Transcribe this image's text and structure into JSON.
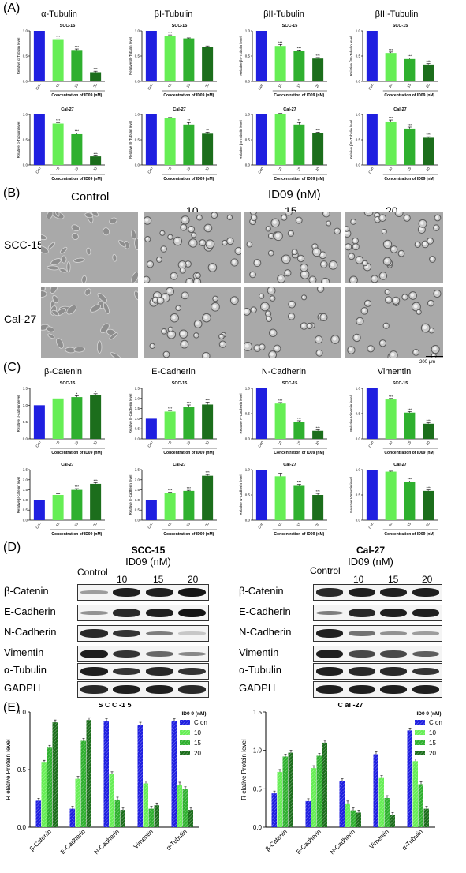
{
  "panel_labels": {
    "a": "(A)",
    "b": "(B)",
    "c": "(C)",
    "d": "(D)",
    "e": "(E)"
  },
  "colors": {
    "con": "#1f1fe0",
    "d10": "#66ee55",
    "d15": "#2fb02f",
    "d20": "#1c6e1c"
  },
  "a_titles": [
    "α-Tubulin",
    "βI-Tubulin",
    "βII-Tubulin",
    "βIII-Tubulin"
  ],
  "c_titles": [
    "β-Catenin",
    "E-Cadherin",
    "N-Cadherin",
    "Vimentin"
  ],
  "small_common": {
    "categories": [
      "Con",
      "10",
      "15",
      "20"
    ],
    "xlabel": "Concentration of ID09 (nM)"
  },
  "small_charts": [
    {
      "row": "a",
      "line": "SCC-15",
      "ylabel": "Relative α-Tubulin level",
      "ymax": 1.0,
      "values": [
        1.0,
        0.82,
        0.62,
        0.18
      ],
      "err": [
        0,
        0.02,
        0.02,
        0.02
      ],
      "sig": [
        "",
        "***",
        "***",
        "***"
      ]
    },
    {
      "row": "a",
      "line": "SCC-15",
      "ylabel": "Relative βI-Tubulin level",
      "ymax": 1.0,
      "values": [
        1.0,
        0.9,
        0.85,
        0.68
      ],
      "err": [
        0,
        0.02,
        0.01,
        0.02
      ],
      "sig": [
        "",
        "***",
        "",
        ""
      ]
    },
    {
      "row": "a",
      "line": "SCC-15",
      "ylabel": "Relative βII-Tubulin level",
      "ymax": 1.0,
      "values": [
        1.0,
        0.7,
        0.6,
        0.45
      ],
      "err": [
        0,
        0.03,
        0.02,
        0.02
      ],
      "sig": [
        "",
        "***",
        "***",
        "***"
      ]
    },
    {
      "row": "a",
      "line": "SCC-15",
      "ylabel": "Relative βIII-Tubulin level",
      "ymax": 1.0,
      "values": [
        1.0,
        0.56,
        0.44,
        0.33
      ],
      "err": [
        0,
        0.02,
        0.02,
        0.02
      ],
      "sig": [
        "",
        "***",
        "***",
        "***"
      ]
    },
    {
      "row": "a2",
      "line": "Cal-27",
      "ylabel": "Relative α-Tubulin level",
      "ymax": 1.0,
      "values": [
        1.0,
        0.82,
        0.61,
        0.17
      ],
      "err": [
        0,
        0.02,
        0.02,
        0.01
      ],
      "sig": [
        "",
        "***",
        "***",
        "***"
      ]
    },
    {
      "row": "a2",
      "line": "Cal-27",
      "ylabel": "Relative βI-Tubulin level",
      "ymax": 1.0,
      "values": [
        1.0,
        0.93,
        0.8,
        0.62
      ],
      "err": [
        0,
        0.01,
        0.04,
        0.03
      ],
      "sig": [
        "",
        "",
        "**",
        "**"
      ]
    },
    {
      "row": "a2",
      "line": "Cal-27",
      "ylabel": "Relative βII-Tubulin level",
      "ymax": 1.0,
      "values": [
        1.0,
        1.0,
        0.8,
        0.63
      ],
      "err": [
        0,
        0.02,
        0.04,
        0.02
      ],
      "sig": [
        "",
        "",
        "**",
        "***"
      ]
    },
    {
      "row": "a2",
      "line": "Cal-27",
      "ylabel": "Relative βIII-Tubulin level",
      "ymax": 1.0,
      "values": [
        1.0,
        0.86,
        0.72,
        0.54
      ],
      "err": [
        0,
        0.03,
        0.03,
        0.02
      ],
      "sig": [
        "",
        "***",
        "***",
        "***"
      ]
    },
    {
      "row": "c",
      "line": "SCC-15",
      "ylabel": "Relative β-catenin level",
      "ymax": 1.5,
      "ticks": [
        0,
        0.5,
        1.0,
        1.5
      ],
      "values": [
        1.0,
        1.2,
        1.24,
        1.3
      ],
      "err": [
        0,
        0.1,
        0.04,
        0.04
      ],
      "sig": [
        "",
        "",
        "*",
        "*"
      ]
    },
    {
      "row": "c",
      "line": "SCC-15",
      "ylabel": "Relative E-Cadherin level",
      "ymax": 2.5,
      "ticks": [
        0,
        0.5,
        1.0,
        1.5,
        2.0,
        2.5
      ],
      "values": [
        1.0,
        1.35,
        1.6,
        1.7
      ],
      "err": [
        0,
        0.05,
        0.08,
        0.12
      ],
      "sig": [
        "",
        "***",
        "***",
        "***"
      ]
    },
    {
      "row": "c",
      "line": "SCC-15",
      "ylabel": "Relative N-Cadherin level",
      "ymax": 1.0,
      "values": [
        1.0,
        0.7,
        0.34,
        0.16
      ],
      "err": [
        0,
        0.02,
        0.02,
        0.02
      ],
      "sig": [
        "",
        "***",
        "***",
        "***"
      ]
    },
    {
      "row": "c",
      "line": "SCC-15",
      "ylabel": "Relative Vimentin level",
      "ymax": 1.0,
      "values": [
        1.0,
        0.78,
        0.52,
        0.3
      ],
      "err": [
        0,
        0.02,
        0.02,
        0.02
      ],
      "sig": [
        "",
        "***",
        "***",
        "***"
      ]
    },
    {
      "row": "c2",
      "line": "Cal-27",
      "ylabel": "Relative β-catenin level",
      "ymax": 2.5,
      "ticks": [
        0,
        0.5,
        1.0,
        1.5,
        2.0,
        2.5
      ],
      "values": [
        1.0,
        1.25,
        1.5,
        1.8
      ],
      "err": [
        0,
        0.06,
        0.06,
        0.06
      ],
      "sig": [
        "",
        "",
        "***",
        "***"
      ]
    },
    {
      "row": "c2",
      "line": "Cal-27",
      "ylabel": "Relative E-Cadherin level",
      "ymax": 2.5,
      "ticks": [
        0,
        0.5,
        1.0,
        1.5,
        2.0,
        2.5
      ],
      "values": [
        1.0,
        1.35,
        1.45,
        2.2
      ],
      "err": [
        0,
        0.04,
        0.03,
        0.06
      ],
      "sig": [
        "",
        "***",
        "***",
        "***"
      ]
    },
    {
      "row": "c2",
      "line": "Cal-27",
      "ylabel": "Relative N-Cadherin level",
      "ymax": 1.0,
      "values": [
        1.0,
        0.87,
        0.68,
        0.5
      ],
      "err": [
        0,
        0.06,
        0.03,
        0.03
      ],
      "sig": [
        "",
        "",
        "***",
        "***"
      ]
    },
    {
      "row": "c2",
      "line": "Cal-27",
      "ylabel": "Relative Vimentin level",
      "ymax": 1.0,
      "values": [
        1.0,
        0.96,
        0.75,
        0.58
      ],
      "err": [
        0,
        0.01,
        0.02,
        0.02
      ],
      "sig": [
        "",
        "",
        "***",
        "***"
      ]
    }
  ],
  "panel_b": {
    "control": "Control",
    "treatment": "ID09 (nM)",
    "doses": [
      "10",
      "15",
      "20"
    ],
    "rows": [
      "SCC-15",
      "Cal-27"
    ],
    "scale": "200 μm"
  },
  "panel_d": {
    "left": {
      "title": "SCC-15",
      "sub": "ID09 (nM)"
    },
    "right": {
      "title": "Cal-27",
      "sub": "ID09 (nM)"
    },
    "lanes": [
      "Control",
      "10",
      "15",
      "20"
    ],
    "proteins": [
      "β-Catenin",
      "E-Cadherin",
      "N-Cadherin",
      "Vimentin",
      "α-Tubulin",
      "GADPH"
    ]
  },
  "panel_e": {
    "legend_title": "ID0 9 (nM)",
    "series": [
      "C on",
      "10",
      "15",
      "20"
    ],
    "ylabel": "R elative Protein level",
    "categories": [
      "β-Catenin",
      "E-Cadherin",
      "N-Cadherin",
      "Vimentin",
      "α-Tubulin"
    ]
  },
  "chart_data": [
    {
      "type": "bar",
      "title": "S C C -1 5",
      "categories": [
        "β-Catenin",
        "E-Cadherin",
        "N-Cadherin",
        "Vimentin",
        "α-Tubulin"
      ],
      "ylabel": "R elative Protein level",
      "ylim": [
        0,
        1.0
      ],
      "series": [
        {
          "name": "C on",
          "values": [
            0.23,
            0.16,
            0.92,
            0.89,
            0.92
          ]
        },
        {
          "name": "10",
          "values": [
            0.56,
            0.42,
            0.46,
            0.38,
            0.37
          ]
        },
        {
          "name": "15",
          "values": [
            0.69,
            0.75,
            0.24,
            0.16,
            0.33
          ]
        },
        {
          "name": "20",
          "values": [
            0.91,
            0.93,
            0.15,
            0.19,
            0.15
          ]
        }
      ]
    },
    {
      "type": "bar",
      "title": "C al -27",
      "categories": [
        "β-Catenin",
        "E-Cadherin",
        "N-Cadherin",
        "Vimentin",
        "α-Tubulin"
      ],
      "ylabel": "R elative Protein level",
      "ylim": [
        0,
        1.5
      ],
      "series": [
        {
          "name": "C on",
          "values": [
            0.44,
            0.34,
            0.6,
            0.95,
            1.26
          ]
        },
        {
          "name": "10",
          "values": [
            0.72,
            0.77,
            0.31,
            0.64,
            0.86
          ]
        },
        {
          "name": "15",
          "values": [
            0.92,
            0.93,
            0.22,
            0.38,
            0.56
          ]
        },
        {
          "name": "20",
          "values": [
            0.97,
            1.1,
            0.19,
            0.16,
            0.24
          ]
        }
      ]
    }
  ]
}
